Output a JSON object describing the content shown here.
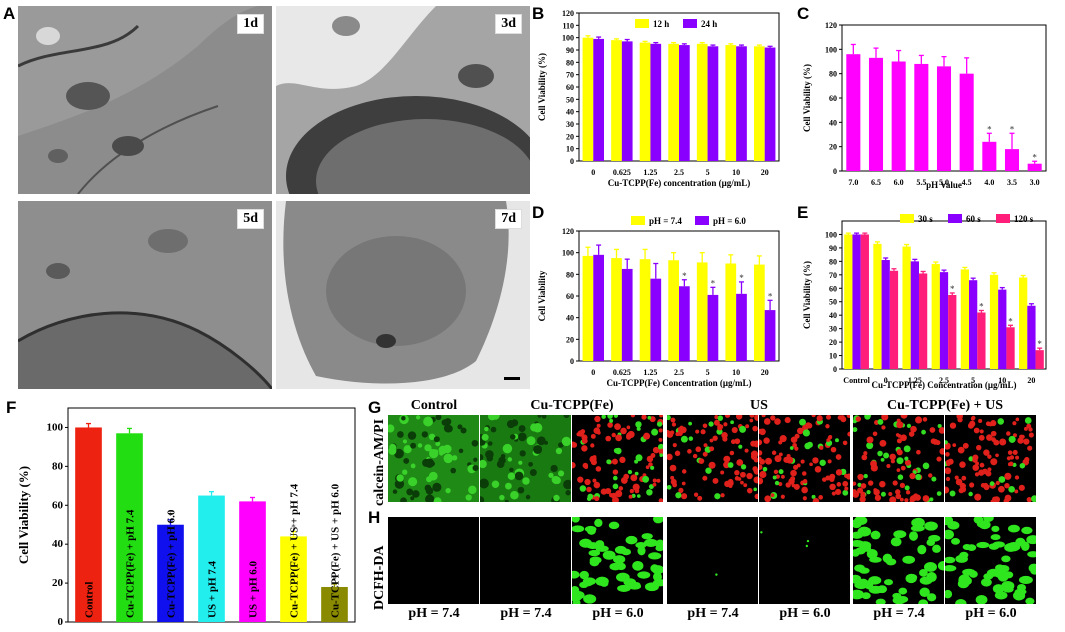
{
  "panel_labels": {
    "A": "A",
    "B": "B",
    "C": "C",
    "D": "D",
    "E": "E",
    "F": "F",
    "G": "G",
    "H": "H"
  },
  "tem_images": [
    {
      "label": "1d"
    },
    {
      "label": "3d"
    },
    {
      "label": "5d"
    },
    {
      "label": "7d"
    }
  ],
  "colors": {
    "yellow": "#ffff00",
    "purple": "#8a00ff",
    "magenta": "#ff00ff",
    "pink": "#ff1f7a",
    "green": "#22dd11",
    "red": "#ee2211",
    "cyan": "#22eeee",
    "olive": "#8a8a00",
    "blue": "#1010ee"
  },
  "chart_data": [
    {
      "panel": "B",
      "type": "bar",
      "categories": [
        "0",
        "0.625",
        "1.25",
        "2.5",
        "5",
        "10",
        "20"
      ],
      "series": [
        {
          "name": "12 h",
          "color": "#ffff00",
          "values": [
            100,
            98,
            96,
            95,
            95,
            94,
            93
          ],
          "errors": [
            1.5,
            1,
            1,
            1,
            1,
            1,
            1
          ]
        },
        {
          "name": "24 h",
          "color": "#8a00ff",
          "values": [
            99,
            97,
            95,
            94,
            93,
            93,
            92
          ],
          "errors": [
            1.5,
            1.5,
            1,
            1,
            1,
            1,
            1
          ]
        }
      ],
      "xlabel": "Cu-TCPP(Fe) concentration (μg/mL)",
      "ylabel": "Cell Viability (%)",
      "ylim": [
        0,
        120
      ],
      "yticks": [
        0,
        10,
        20,
        30,
        40,
        50,
        60,
        70,
        80,
        90,
        100,
        110,
        120
      ],
      "legend": "top"
    },
    {
      "panel": "C",
      "type": "bar",
      "categories": [
        "7.0",
        "6.5",
        "6.0",
        "5.5",
        "5.0",
        "4.5",
        "4.0",
        "3.5",
        "3.0"
      ],
      "series": [
        {
          "name": "",
          "color": "#ff00ff",
          "values": [
            96,
            93,
            90,
            88,
            86,
            80,
            24,
            18,
            6
          ],
          "errors": [
            8,
            8,
            9,
            7,
            8,
            13,
            7,
            13,
            2
          ]
        }
      ],
      "stars": [
        false,
        false,
        false,
        false,
        false,
        false,
        true,
        true,
        true
      ],
      "xlabel": "pH Value",
      "ylabel": "Cell Viability (%)",
      "ylim": [
        0,
        120
      ],
      "yticks": [
        0,
        20,
        40,
        60,
        80,
        100,
        120
      ]
    },
    {
      "panel": "D",
      "type": "bar",
      "categories": [
        "0",
        "0.625",
        "1.25",
        "2.5",
        "5",
        "10",
        "20"
      ],
      "series": [
        {
          "name": "pH = 7.4",
          "color": "#ffff00",
          "values": [
            97,
            95,
            94,
            93,
            91,
            90,
            89
          ],
          "errors": [
            8,
            8,
            9,
            7,
            9,
            8,
            8
          ]
        },
        {
          "name": "pH = 6.0",
          "color": "#8a00ff",
          "values": [
            98,
            85,
            76,
            69,
            61,
            62,
            47
          ],
          "errors": [
            9,
            9,
            14,
            6,
            7,
            11,
            9
          ]
        }
      ],
      "stars2": [
        false,
        false,
        false,
        true,
        true,
        true,
        true
      ],
      "xlabel": "Cu-TCPP(Fe) Concentration (μg/mL)",
      "ylabel": "Cell Viability",
      "ylim": [
        0,
        120
      ],
      "yticks": [
        0,
        20,
        40,
        60,
        80,
        100,
        120
      ],
      "legend": "top"
    },
    {
      "panel": "E",
      "type": "bar",
      "categories": [
        "Control",
        "0",
        "1.25",
        "2.5",
        "5",
        "10",
        "20"
      ],
      "series": [
        {
          "name": "30 s",
          "color": "#ffff00",
          "values": [
            100,
            93,
            91,
            78,
            74,
            70,
            68
          ],
          "errors": [
            1,
            1.5,
            1.5,
            1.5,
            1.5,
            1.5,
            1.5
          ]
        },
        {
          "name": "60 s",
          "color": "#8a00ff",
          "values": [
            100,
            81,
            80,
            72,
            66,
            59,
            47
          ],
          "errors": [
            1,
            1.5,
            1.5,
            1.5,
            1.5,
            1.5,
            1.5
          ]
        },
        {
          "name": "120 s",
          "color": "#ff1f7a",
          "values": [
            100,
            73,
            71,
            55,
            42,
            31,
            14
          ],
          "errors": [
            1,
            1.5,
            1.5,
            1.5,
            1.5,
            1.5,
            1.5
          ]
        }
      ],
      "stars": [
        false,
        false,
        false,
        true,
        true,
        true,
        true
      ],
      "xlabel": "Cu-TCPP(Fe) Concentration (μg/mL)",
      "ylabel": "Cell Viability (%)",
      "ylim": [
        0,
        110
      ],
      "yticks": [
        0,
        10,
        20,
        30,
        40,
        50,
        60,
        70,
        80,
        90,
        100
      ],
      "legend": "top"
    },
    {
      "panel": "F",
      "type": "bar",
      "categories": [
        "Control",
        "Cu-TCPP(Fe) + pH 7.4",
        "Cu-TCPP(Fe) + pH 6.0",
        "US + pH 7.4",
        "US + pH 6.0",
        "Cu-TCPP(Fe) + US + pH 7.4",
        "Cu-TCPP(Fe) + US + pH 6.0"
      ],
      "series": [
        {
          "name": "",
          "values": [
            100,
            97,
            50,
            65,
            62,
            44,
            18
          ],
          "errors": [
            2,
            2.5,
            2.5,
            2,
            2,
            2.5,
            1.5
          ],
          "colors": [
            "#ee2211",
            "#22dd11",
            "#1010ee",
            "#22eeee",
            "#ff00ff",
            "#ffff00",
            "#8a8a00"
          ]
        }
      ],
      "stars": [
        false,
        false,
        true,
        false,
        false,
        true,
        true
      ],
      "ylabel": "Cell Viability (%)",
      "ylim": [
        0,
        110
      ],
      "yticks": [
        0,
        20,
        40,
        60,
        80,
        100
      ]
    }
  ],
  "microscopy": {
    "columns": [
      "Control",
      "Cu-TCPP(Fe)",
      "US",
      "Cu-TCPP(Fe) + US"
    ],
    "row_labels": [
      "calcein-AM/PI",
      "DCFH-DA"
    ],
    "ph_labels": [
      "pH = 7.4",
      "pH = 7.4",
      "pH = 6.0",
      "pH = 7.4",
      "pH = 6.0",
      "pH = 7.4",
      "pH = 6.0"
    ]
  }
}
